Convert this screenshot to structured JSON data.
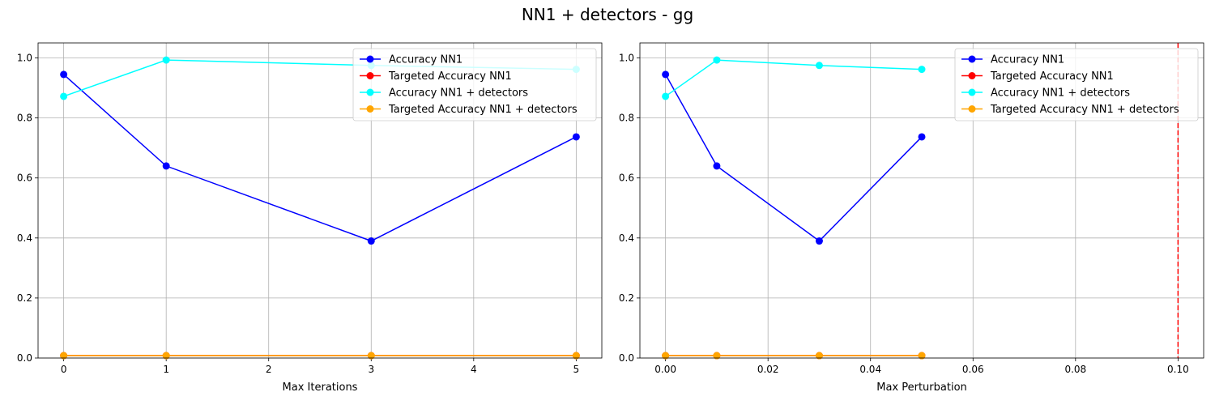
{
  "figure": {
    "title": "NN1 + detectors - gg"
  },
  "chart_data": [
    {
      "type": "line",
      "xlabel": "Max Iterations",
      "ylabel": "",
      "x": [
        0,
        1,
        3,
        5
      ],
      "xlim": [
        -0.25,
        5.25
      ],
      "ylim": [
        0,
        1.05
      ],
      "xticks": [
        0,
        1,
        2,
        3,
        4,
        5
      ],
      "xtick_labels": [
        "0",
        "1",
        "2",
        "3",
        "4",
        "5"
      ],
      "yticks": [
        0,
        0.2,
        0.4,
        0.6,
        0.8,
        1.0
      ],
      "ytick_labels": [
        "0.0",
        "0.2",
        "0.4",
        "0.6",
        "0.8",
        "1.0"
      ],
      "grid": true,
      "legend_position": "top-right",
      "series": [
        {
          "name": "Accuracy NN1",
          "color": "#0000ff",
          "values": [
            0.945,
            0.64,
            0.39,
            0.737
          ]
        },
        {
          "name": "Targeted Accuracy NN1",
          "color": "#ff0000",
          "values": [
            0.008,
            0.008,
            0.008,
            0.008
          ]
        },
        {
          "name": "Accuracy NN1 + detectors",
          "color": "#00ffff",
          "values": [
            0.872,
            0.993,
            0.975,
            0.962
          ]
        },
        {
          "name": "Targeted Accuracy NN1 + detectors",
          "color": "#ffa500",
          "values": [
            0.008,
            0.008,
            0.008,
            0.008
          ]
        }
      ],
      "vlines": []
    },
    {
      "type": "line",
      "xlabel": "Max Perturbation",
      "ylabel": "",
      "x": [
        0.0,
        0.01,
        0.03,
        0.05
      ],
      "xlim": [
        -0.005,
        0.105
      ],
      "ylim": [
        0,
        1.05
      ],
      "xticks": [
        0.0,
        0.02,
        0.04,
        0.06,
        0.08,
        0.1
      ],
      "xtick_labels": [
        "0.00",
        "0.02",
        "0.04",
        "0.06",
        "0.08",
        "0.10"
      ],
      "yticks": [
        0,
        0.2,
        0.4,
        0.6,
        0.8,
        1.0
      ],
      "ytick_labels": [
        "0.0",
        "0.2",
        "0.4",
        "0.6",
        "0.8",
        "1.0"
      ],
      "grid": true,
      "legend_position": "top-right",
      "series": [
        {
          "name": "Accuracy NN1",
          "color": "#0000ff",
          "values": [
            0.945,
            0.64,
            0.39,
            0.737
          ]
        },
        {
          "name": "Targeted Accuracy NN1",
          "color": "#ff0000",
          "values": [
            0.008,
            0.008,
            0.008,
            0.008
          ]
        },
        {
          "name": "Accuracy NN1 + detectors",
          "color": "#00ffff",
          "values": [
            0.872,
            0.993,
            0.975,
            0.962
          ]
        },
        {
          "name": "Targeted Accuracy NN1 + detectors",
          "color": "#ffa500",
          "values": [
            0.008,
            0.008,
            0.008,
            0.008
          ]
        }
      ],
      "vlines": [
        {
          "x": 0.1,
          "color": "#ff0000",
          "style": "dashed"
        }
      ]
    }
  ]
}
